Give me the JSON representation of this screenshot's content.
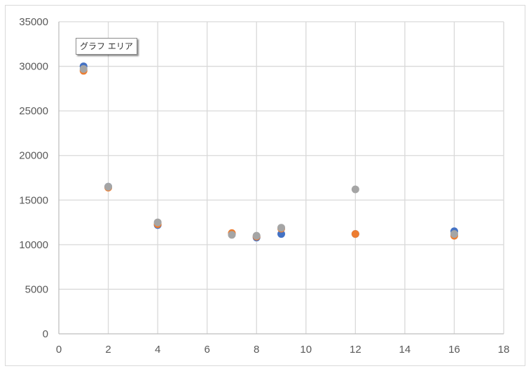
{
  "tooltip": "グラフ エリア",
  "chart_data": {
    "type": "scatter",
    "title": "",
    "xlabel": "",
    "ylabel": "",
    "xlim": [
      0,
      18
    ],
    "ylim": [
      0,
      35000
    ],
    "xticks": [
      0,
      2,
      4,
      6,
      8,
      10,
      12,
      14,
      16,
      18
    ],
    "yticks": [
      0,
      5000,
      10000,
      15000,
      20000,
      25000,
      30000,
      35000
    ],
    "grid": true,
    "legend": "none",
    "series": [
      {
        "color": "#4472c4",
        "points": [
          [
            1,
            30000
          ],
          [
            2,
            16500
          ],
          [
            4,
            12200
          ],
          [
            7,
            11200
          ],
          [
            8,
            10800
          ],
          [
            9,
            11200
          ],
          [
            12,
            11200
          ],
          [
            16,
            11500
          ]
        ]
      },
      {
        "color": "#ed7d31",
        "points": [
          [
            1,
            29500
          ],
          [
            2,
            16400
          ],
          [
            4,
            12300
          ],
          [
            7,
            11300
          ],
          [
            8,
            10900
          ],
          [
            9,
            11800
          ],
          [
            12,
            11200
          ],
          [
            16,
            11000
          ]
        ]
      },
      {
        "color": "#a5a5a5",
        "points": [
          [
            1,
            29700
          ],
          [
            2,
            16500
          ],
          [
            4,
            12500
          ],
          [
            7,
            11100
          ],
          [
            8,
            11000
          ],
          [
            9,
            11900
          ],
          [
            12,
            16200
          ],
          [
            16,
            11200
          ]
        ]
      }
    ]
  }
}
